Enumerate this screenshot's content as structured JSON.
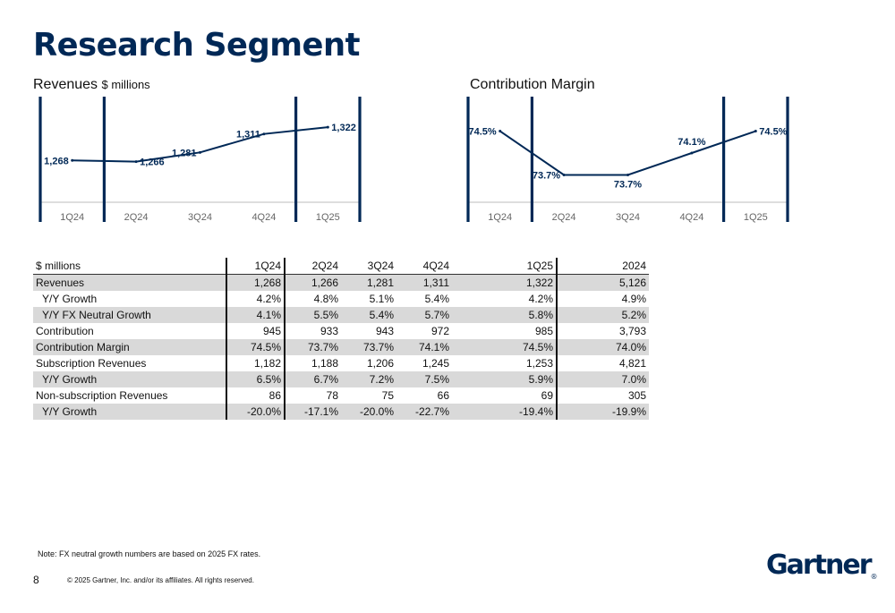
{
  "page": {
    "title": "Research Segment",
    "note": "Note: FX neutral growth numbers are based on 2025 FX rates.",
    "page_number": "8",
    "copyright": "© 2025 Gartner, Inc. and/or its affiliates. All rights reserved.",
    "logo_text": "Gartner",
    "logo_mark": "®"
  },
  "colors": {
    "brand": "#002856",
    "shade": "#d9d9d9",
    "tick": "#666666"
  },
  "chart_data": [
    {
      "type": "line",
      "title": "Revenues",
      "subtitle": "$ millions",
      "categories": [
        "1Q24",
        "2Q24",
        "3Q24",
        "4Q24",
        "1Q25"
      ],
      "values": [
        1268,
        1266,
        1281,
        1311,
        1322
      ],
      "labels": [
        "1,268",
        "1,266",
        "1,281",
        "1,311",
        "1,322"
      ],
      "ylim": [
        1200,
        1360
      ]
    },
    {
      "type": "line",
      "title": "Contribution Margin",
      "subtitle": "",
      "categories": [
        "1Q24",
        "2Q24",
        "3Q24",
        "4Q24",
        "1Q25"
      ],
      "values": [
        74.5,
        73.7,
        73.7,
        74.1,
        74.5
      ],
      "labels": [
        "74.5%",
        "73.7%",
        "73.7%",
        "74.1%",
        "74.5%"
      ],
      "ylim": [
        73.2,
        75.0
      ]
    }
  ],
  "table": {
    "columns": [
      "$ millions",
      "1Q24",
      "2Q24",
      "3Q24",
      "4Q24",
      "1Q25",
      "2024"
    ],
    "rows": [
      {
        "label": "Revenues",
        "values": [
          "1,268",
          "1,266",
          "1,281",
          "1,311",
          "1,322",
          "5,126"
        ]
      },
      {
        "label": "Y/Y Growth",
        "values": [
          "4.2%",
          "4.8%",
          "5.1%",
          "5.4%",
          "4.2%",
          "4.9%"
        ]
      },
      {
        "label": "Y/Y FX Neutral Growth",
        "values": [
          "4.1%",
          "5.5%",
          "5.4%",
          "5.7%",
          "5.8%",
          "5.2%"
        ]
      },
      {
        "label": "Contribution",
        "values": [
          "945",
          "933",
          "943",
          "972",
          "985",
          "3,793"
        ]
      },
      {
        "label": "Contribution Margin",
        "values": [
          "74.5%",
          "73.7%",
          "73.7%",
          "74.1%",
          "74.5%",
          "74.0%"
        ]
      },
      {
        "label": "Subscription Revenues",
        "values": [
          "1,182",
          "1,188",
          "1,206",
          "1,245",
          "1,253",
          "4,821"
        ]
      },
      {
        "label": "Y/Y Growth",
        "values": [
          "6.5%",
          "6.7%",
          "7.2%",
          "7.5%",
          "5.9%",
          "7.0%"
        ]
      },
      {
        "label": "Non-subscription Revenues",
        "values": [
          "86",
          "78",
          "75",
          "66",
          "69",
          "305"
        ]
      },
      {
        "label": "Y/Y Growth",
        "values": [
          "-20.0%",
          "-17.1%",
          "-20.0%",
          "-22.7%",
          "-19.4%",
          "-19.9%"
        ]
      }
    ]
  }
}
